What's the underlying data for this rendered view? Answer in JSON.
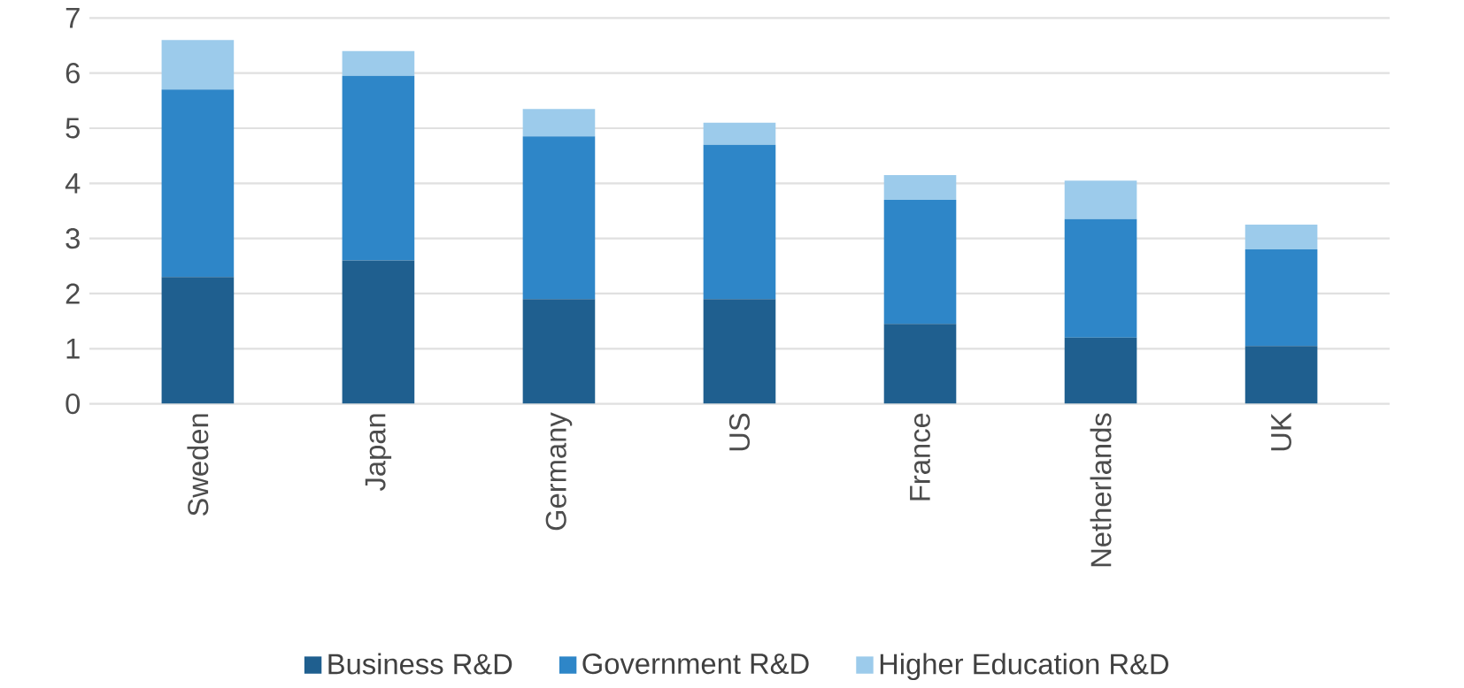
{
  "chart_data": {
    "type": "bar",
    "stacked": true,
    "categories": [
      "Sweden",
      "Japan",
      "Germany",
      "US",
      "France",
      "Netherlands",
      "UK"
    ],
    "series": [
      {
        "name": "Business R&D",
        "color": "#1f5f8f",
        "values": [
          2.3,
          2.6,
          1.9,
          1.9,
          1.45,
          1.2,
          1.05
        ]
      },
      {
        "name": "Government R&D",
        "color": "#2e86c8",
        "values": [
          3.4,
          3.35,
          2.95,
          2.8,
          2.25,
          2.15,
          1.75
        ]
      },
      {
        "name": "Higher Education R&D",
        "color": "#9ccbeb",
        "values": [
          0.9,
          0.45,
          0.5,
          0.4,
          0.45,
          0.7,
          0.45
        ]
      }
    ],
    "ylim": [
      0,
      7
    ],
    "yticks": [
      0,
      1,
      2,
      3,
      4,
      5,
      6,
      7
    ],
    "grid": "y",
    "legend": "bottom"
  }
}
